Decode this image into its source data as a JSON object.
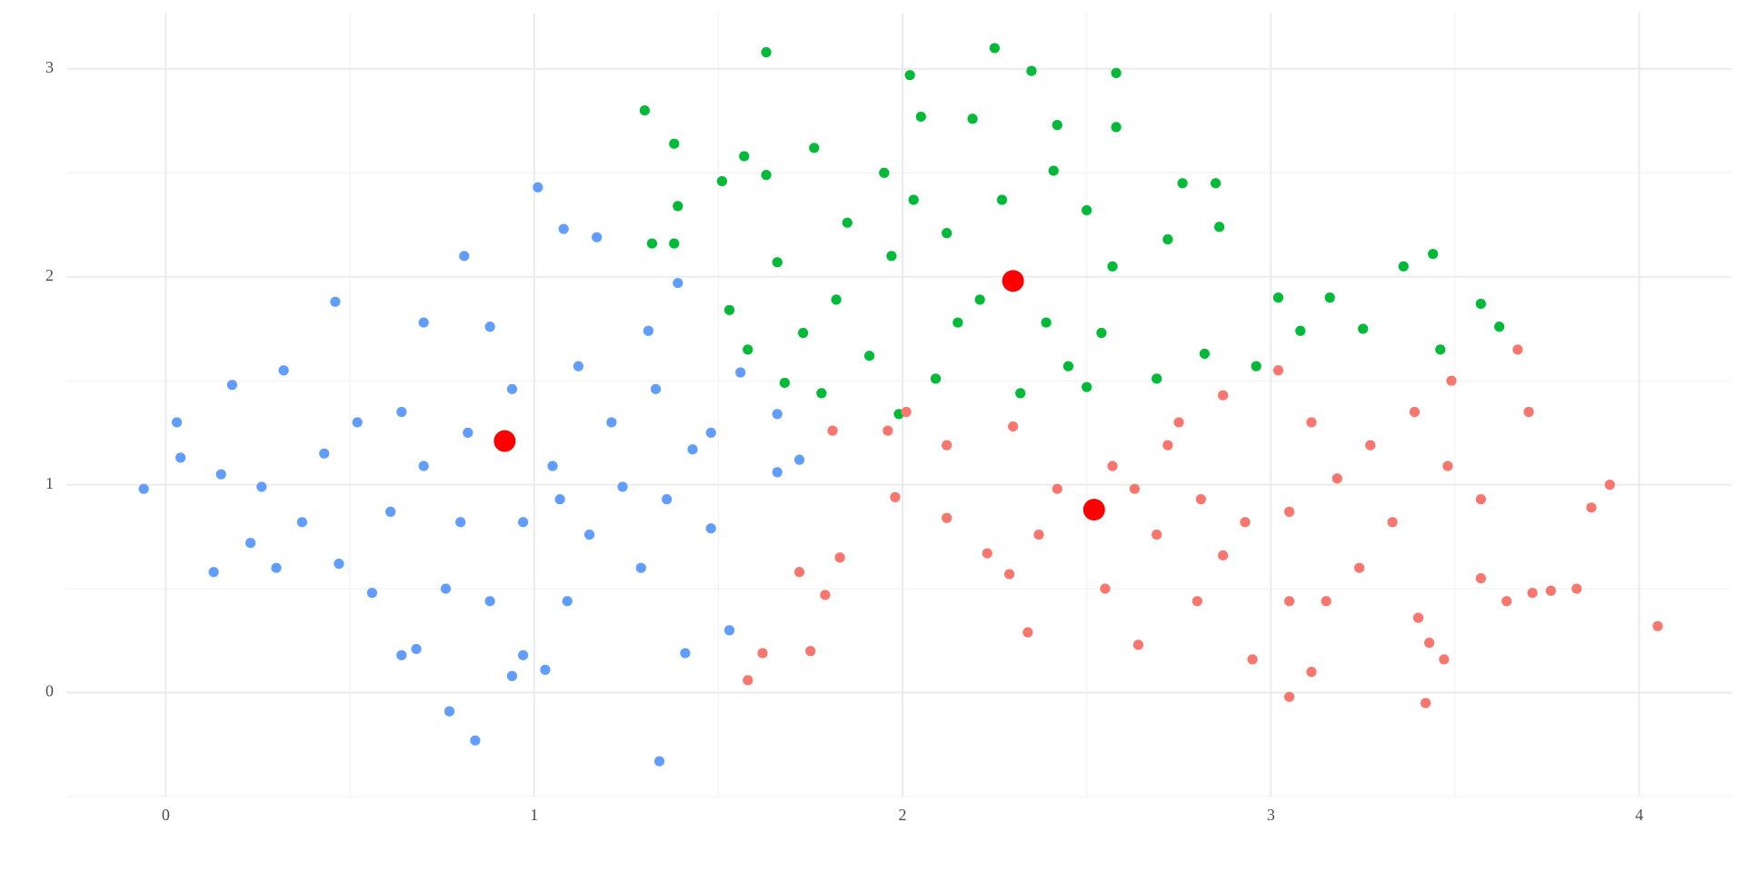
{
  "chart_data": {
    "type": "scatter",
    "xlim": [
      -0.27,
      4.25
    ],
    "ylim": [
      -0.5,
      3.27
    ],
    "xticks": [
      0,
      1,
      2,
      3,
      4
    ],
    "yticks": [
      0,
      1,
      2,
      3
    ],
    "grid": true,
    "series": [
      {
        "color": "#619cff",
        "x": [
          -0.06,
          0.03,
          0.04,
          0.13,
          0.15,
          0.18,
          0.23,
          0.3,
          0.32,
          0.26,
          0.46,
          0.43,
          0.47,
          0.56,
          0.64,
          0.7,
          0.68,
          0.77,
          0.84,
          0.81,
          0.88,
          1.01,
          1.08,
          1.17,
          1.03,
          0.94,
          1.34,
          1.31,
          1.39,
          1.41,
          1.53,
          1.66,
          1.72,
          1.66,
          1.56,
          1.43,
          1.24,
          1.15,
          1.05,
          0.8,
          0.61,
          0.52,
          0.7,
          0.94,
          1.12,
          0.97,
          0.88,
          1.29,
          1.48,
          1.09,
          0.76,
          1.36,
          0.64,
          1.21,
          1.48,
          0.97,
          0.37,
          0.82,
          1.07,
          1.33
        ],
        "y": [
          0.98,
          1.3,
          1.13,
          0.58,
          1.05,
          1.48,
          0.72,
          0.6,
          1.55,
          0.99,
          1.88,
          1.15,
          0.62,
          0.48,
          0.18,
          1.78,
          0.21,
          -0.09,
          -0.23,
          2.1,
          1.76,
          2.43,
          2.23,
          2.19,
          0.11,
          0.08,
          -0.33,
          1.74,
          1.97,
          0.19,
          0.3,
          1.06,
          1.12,
          1.34,
          1.54,
          1.17,
          0.99,
          0.76,
          1.09,
          0.82,
          0.87,
          1.3,
          1.09,
          1.46,
          1.57,
          0.82,
          0.44,
          0.6,
          0.79,
          0.44,
          0.5,
          0.93,
          1.35,
          1.3,
          1.25,
          0.18,
          0.82,
          1.25,
          0.93,
          1.46
        ]
      },
      {
        "color": "#00ba38",
        "x": [
          1.3,
          1.38,
          1.63,
          2.02,
          2.25,
          2.35,
          2.58,
          2.58,
          2.76,
          2.85,
          2.86,
          3.36,
          3.44,
          3.57,
          3.62,
          3.46,
          3.25,
          3.16,
          3.02,
          3.08,
          2.96,
          2.82,
          2.69,
          2.5,
          2.32,
          1.99,
          1.78,
          1.68,
          1.58,
          1.53,
          1.38,
          1.32,
          1.39,
          1.51,
          1.57,
          1.63,
          1.76,
          1.95,
          2.05,
          2.19,
          2.42,
          2.41,
          2.5,
          2.57,
          2.72,
          1.82,
          1.97,
          2.12,
          2.21,
          2.39,
          1.91,
          2.09,
          1.66,
          1.73,
          2.27,
          2.45,
          2.03,
          1.85,
          2.54,
          2.15
        ],
        "y": [
          2.8,
          2.64,
          3.08,
          2.97,
          3.1,
          2.99,
          2.98,
          2.72,
          2.45,
          2.45,
          2.24,
          2.05,
          2.11,
          1.87,
          1.76,
          1.65,
          1.75,
          1.9,
          1.9,
          1.74,
          1.57,
          1.63,
          1.51,
          1.47,
          1.44,
          1.34,
          1.44,
          1.49,
          1.65,
          1.84,
          2.16,
          2.16,
          2.34,
          2.46,
          2.58,
          2.49,
          2.62,
          2.5,
          2.77,
          2.76,
          2.73,
          2.51,
          2.32,
          2.05,
          2.18,
          1.89,
          2.1,
          2.21,
          1.89,
          1.78,
          1.62,
          1.51,
          2.07,
          1.73,
          2.37,
          1.57,
          2.37,
          2.26,
          1.73,
          1.78
        ]
      },
      {
        "color": "#f8766d",
        "x": [
          1.58,
          1.62,
          1.75,
          1.72,
          1.79,
          1.83,
          1.81,
          1.98,
          1.96,
          2.01,
          2.12,
          2.12,
          2.23,
          2.29,
          2.34,
          2.37,
          2.42,
          2.3,
          2.55,
          2.64,
          2.8,
          2.95,
          3.05,
          3.11,
          3.05,
          3.15,
          3.24,
          3.4,
          3.43,
          3.47,
          3.42,
          3.57,
          3.64,
          3.71,
          3.76,
          3.83,
          3.87,
          3.92,
          4.05,
          3.67,
          3.7,
          3.49,
          3.02,
          2.87,
          2.72,
          2.57,
          2.81,
          2.93,
          3.18,
          3.33,
          3.48,
          3.57,
          3.11,
          3.27,
          2.69,
          2.87,
          3.05,
          2.63,
          3.39,
          2.75
        ],
        "y": [
          0.06,
          0.19,
          0.2,
          0.58,
          0.47,
          0.65,
          1.26,
          0.94,
          1.26,
          1.35,
          1.19,
          0.84,
          0.67,
          0.57,
          0.29,
          0.76,
          0.98,
          1.28,
          0.5,
          0.23,
          0.44,
          0.16,
          -0.02,
          0.1,
          0.44,
          0.44,
          0.6,
          0.36,
          0.24,
          0.16,
          -0.05,
          0.55,
          0.44,
          0.48,
          0.49,
          0.5,
          0.89,
          1.0,
          0.32,
          1.65,
          1.35,
          1.5,
          1.55,
          1.43,
          1.19,
          1.09,
          0.93,
          0.82,
          1.03,
          0.82,
          1.09,
          0.93,
          1.3,
          1.19,
          0.76,
          0.66,
          0.87,
          0.98,
          1.35,
          1.3
        ]
      }
    ],
    "centroids": {
      "color": "#ff0000",
      "x": [
        0.92,
        2.3,
        2.52
      ],
      "y": [
        1.21,
        1.98,
        0.88
      ]
    }
  }
}
